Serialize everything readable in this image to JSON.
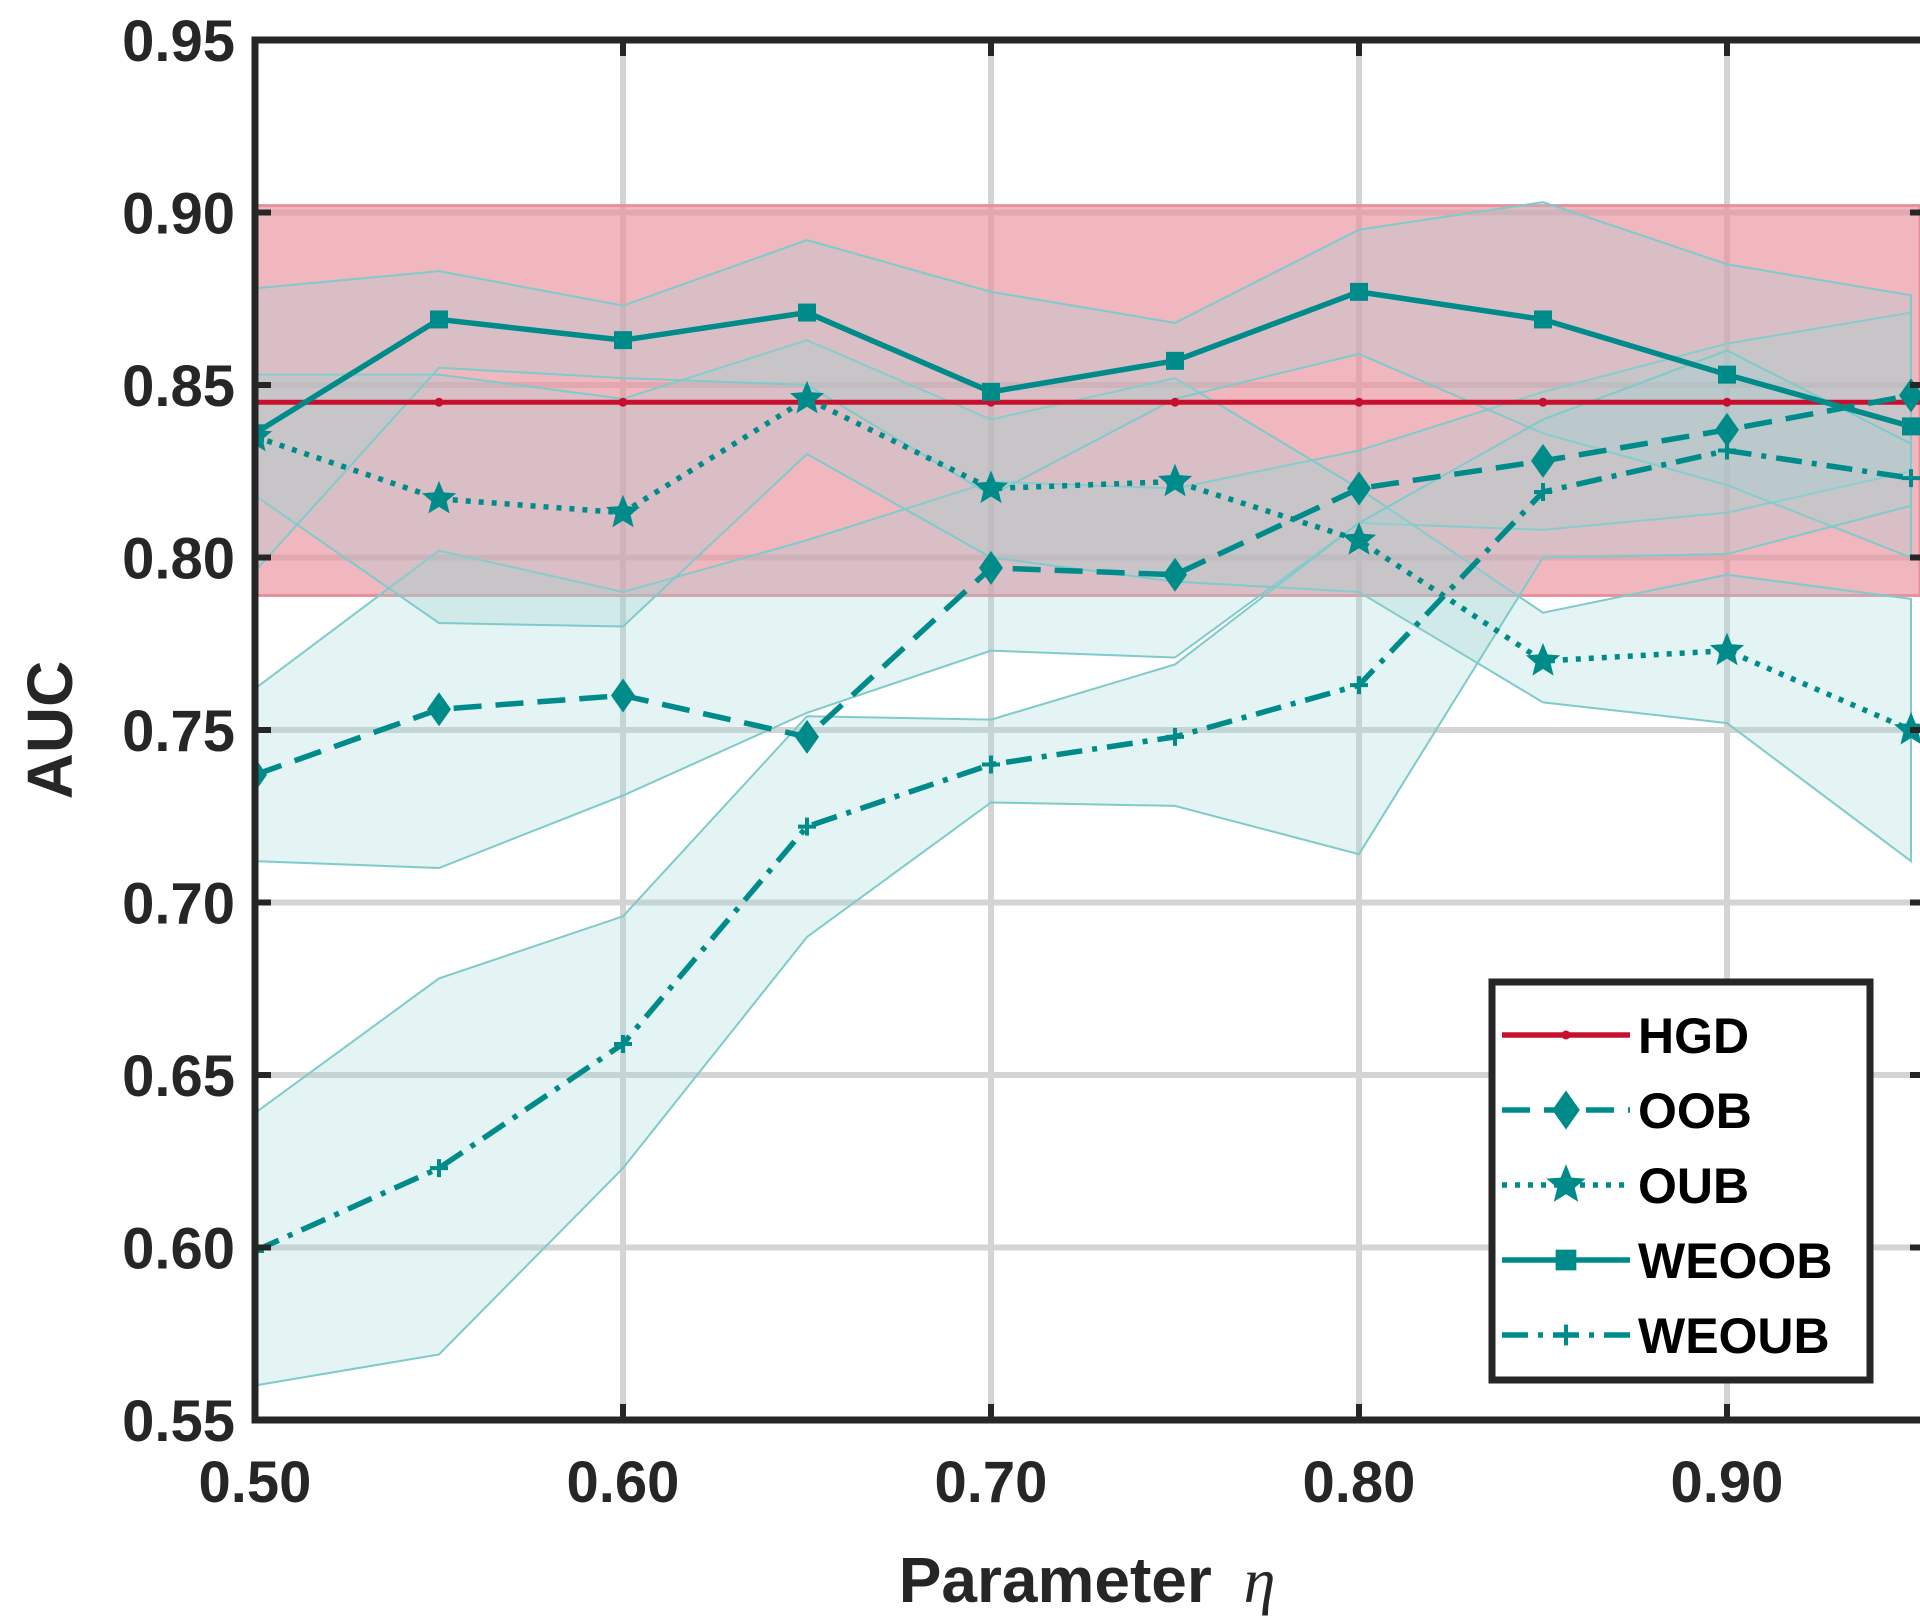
{
  "chart_data": {
    "type": "line",
    "xlabel": "Parameter",
    "xlabel_symbol": "η",
    "ylabel": "AUC",
    "xlim": [
      0.5,
      0.95
    ],
    "ylim": [
      0.55,
      0.95
    ],
    "xticks": [
      0.5,
      0.6,
      0.7,
      0.8,
      0.9
    ],
    "xtick_labels": [
      "0.50",
      "0.60",
      "0.70",
      "0.80",
      "0.90"
    ],
    "yticks": [
      0.55,
      0.6,
      0.65,
      0.7,
      0.75,
      0.8,
      0.85,
      0.9,
      0.95
    ],
    "ytick_labels": [
      "0.55",
      "0.60",
      "0.65",
      "0.70",
      "0.75",
      "0.80",
      "0.85",
      "0.90",
      "0.95"
    ],
    "grid": true,
    "legend_position": "bottom-right",
    "x": [
      0.5,
      0.55,
      0.6,
      0.65,
      0.7,
      0.75,
      0.8,
      0.85,
      0.9,
      0.95
    ],
    "hgd": {
      "name": "HGD",
      "color": "#C8102E",
      "band_color": "#E8909C",
      "value": 0.845,
      "band_low": 0.789,
      "band_high": 0.902
    },
    "band_color": "#9ED5D5",
    "band_edge_color": "#7FCACA",
    "series": [
      {
        "name": "OOB",
        "color": "#008B8B",
        "dash": "dashed",
        "marker": "diamond",
        "values": [
          0.737,
          0.756,
          0.76,
          0.748,
          0.797,
          0.795,
          0.82,
          0.828,
          0.837,
          0.847
        ],
        "low": [
          0.712,
          0.71,
          0.731,
          0.755,
          0.773,
          0.771,
          0.81,
          0.808,
          0.813,
          0.825
        ],
        "high": [
          0.762,
          0.802,
          0.79,
          0.805,
          0.822,
          0.82,
          0.831,
          0.848,
          0.862,
          0.871
        ]
      },
      {
        "name": "OUB",
        "color": "#008B8B",
        "dash": "dotted",
        "marker": "star",
        "values": [
          0.835,
          0.817,
          0.813,
          0.846,
          0.82,
          0.822,
          0.805,
          0.77,
          0.773,
          0.75
        ],
        "low": [
          0.818,
          0.781,
          0.78,
          0.83,
          0.8,
          0.793,
          0.79,
          0.758,
          0.752,
          0.712
        ],
        "high": [
          0.853,
          0.853,
          0.846,
          0.863,
          0.84,
          0.852,
          0.82,
          0.784,
          0.795,
          0.788
        ]
      },
      {
        "name": "WEOOB",
        "color": "#008B8B",
        "dash": "solid",
        "marker": "square",
        "values": [
          0.836,
          0.869,
          0.863,
          0.871,
          0.848,
          0.857,
          0.877,
          0.869,
          0.853,
          0.838
        ],
        "low": [
          0.796,
          0.855,
          0.852,
          0.85,
          0.818,
          0.846,
          0.859,
          0.836,
          0.821,
          0.8
        ],
        "high": [
          0.878,
          0.883,
          0.873,
          0.892,
          0.877,
          0.868,
          0.895,
          0.903,
          0.885,
          0.876
        ]
      },
      {
        "name": "WEOUB",
        "color": "#008B8B",
        "dash": "dashdot",
        "marker": "plus",
        "values": [
          0.599,
          0.623,
          0.659,
          0.722,
          0.74,
          0.748,
          0.763,
          0.819,
          0.831,
          0.823
        ],
        "low": [
          0.56,
          0.569,
          0.623,
          0.69,
          0.729,
          0.728,
          0.714,
          0.8,
          0.801,
          0.815
        ],
        "high": [
          0.639,
          0.678,
          0.696,
          0.754,
          0.753,
          0.769,
          0.81,
          0.84,
          0.86,
          0.833
        ]
      }
    ]
  }
}
